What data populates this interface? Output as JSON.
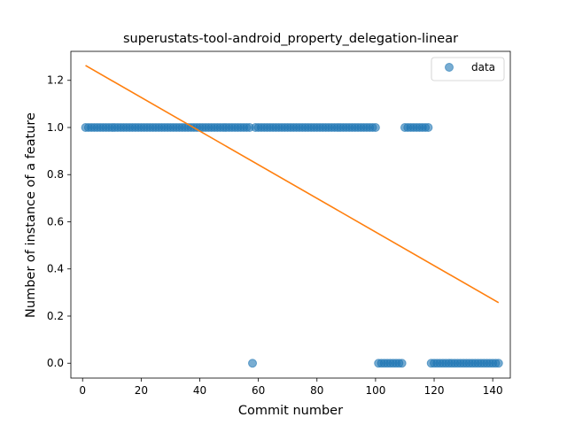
{
  "chart_data": {
    "type": "scatter",
    "title": "superustats-tool-android_property_delegation-linear",
    "xlabel": "Commit number",
    "ylabel": "Number of instance of a feature",
    "xlim": [
      -4,
      146
    ],
    "ylim": [
      -0.063,
      1.323
    ],
    "xticks": [
      0,
      20,
      40,
      60,
      80,
      100,
      120,
      140
    ],
    "yticks": [
      0.0,
      0.2,
      0.4,
      0.6,
      0.8,
      1.0,
      1.2
    ],
    "ytick_labels": [
      "0.0",
      "0.2",
      "0.4",
      "0.6",
      "0.8",
      "1.0",
      "1.2"
    ],
    "legend": {
      "position": "top-right",
      "entries": [
        "data"
      ]
    },
    "grid": false,
    "series": [
      {
        "name": "data",
        "kind": "scatter",
        "color": "#1f77b4",
        "points": [
          [
            1,
            1
          ],
          [
            2,
            1
          ],
          [
            3,
            1
          ],
          [
            4,
            1
          ],
          [
            5,
            1
          ],
          [
            6,
            1
          ],
          [
            7,
            1
          ],
          [
            8,
            1
          ],
          [
            9,
            1
          ],
          [
            10,
            1
          ],
          [
            11,
            1
          ],
          [
            12,
            1
          ],
          [
            13,
            1
          ],
          [
            14,
            1
          ],
          [
            15,
            1
          ],
          [
            16,
            1
          ],
          [
            17,
            1
          ],
          [
            18,
            1
          ],
          [
            19,
            1
          ],
          [
            20,
            1
          ],
          [
            21,
            1
          ],
          [
            22,
            1
          ],
          [
            23,
            1
          ],
          [
            24,
            1
          ],
          [
            25,
            1
          ],
          [
            26,
            1
          ],
          [
            27,
            1
          ],
          [
            28,
            1
          ],
          [
            29,
            1
          ],
          [
            30,
            1
          ],
          [
            31,
            1
          ],
          [
            32,
            1
          ],
          [
            33,
            1
          ],
          [
            34,
            1
          ],
          [
            35,
            1
          ],
          [
            36,
            1
          ],
          [
            37,
            1
          ],
          [
            38,
            1
          ],
          [
            39,
            1
          ],
          [
            40,
            1
          ],
          [
            41,
            1
          ],
          [
            42,
            1
          ],
          [
            43,
            1
          ],
          [
            44,
            1
          ],
          [
            45,
            1
          ],
          [
            46,
            1
          ],
          [
            47,
            1
          ],
          [
            48,
            1
          ],
          [
            49,
            1
          ],
          [
            50,
            1
          ],
          [
            51,
            1
          ],
          [
            52,
            1
          ],
          [
            53,
            1
          ],
          [
            54,
            1
          ],
          [
            55,
            1
          ],
          [
            56,
            1
          ],
          [
            57,
            1
          ],
          [
            58,
            0
          ],
          [
            59,
            1
          ],
          [
            60,
            1
          ],
          [
            61,
            1
          ],
          [
            62,
            1
          ],
          [
            63,
            1
          ],
          [
            64,
            1
          ],
          [
            65,
            1
          ],
          [
            66,
            1
          ],
          [
            67,
            1
          ],
          [
            68,
            1
          ],
          [
            69,
            1
          ],
          [
            70,
            1
          ],
          [
            71,
            1
          ],
          [
            72,
            1
          ],
          [
            73,
            1
          ],
          [
            74,
            1
          ],
          [
            75,
            1
          ],
          [
            76,
            1
          ],
          [
            77,
            1
          ],
          [
            78,
            1
          ],
          [
            79,
            1
          ],
          [
            80,
            1
          ],
          [
            81,
            1
          ],
          [
            82,
            1
          ],
          [
            83,
            1
          ],
          [
            84,
            1
          ],
          [
            85,
            1
          ],
          [
            86,
            1
          ],
          [
            87,
            1
          ],
          [
            88,
            1
          ],
          [
            89,
            1
          ],
          [
            90,
            1
          ],
          [
            91,
            1
          ],
          [
            92,
            1
          ],
          [
            93,
            1
          ],
          [
            94,
            1
          ],
          [
            95,
            1
          ],
          [
            96,
            1
          ],
          [
            97,
            1
          ],
          [
            98,
            1
          ],
          [
            99,
            1
          ],
          [
            100,
            1
          ],
          [
            101,
            0
          ],
          [
            102,
            0
          ],
          [
            103,
            0
          ],
          [
            104,
            0
          ],
          [
            105,
            0
          ],
          [
            106,
            0
          ],
          [
            107,
            0
          ],
          [
            108,
            0
          ],
          [
            109,
            0
          ],
          [
            110,
            1
          ],
          [
            111,
            1
          ],
          [
            112,
            1
          ],
          [
            113,
            1
          ],
          [
            114,
            1
          ],
          [
            115,
            1
          ],
          [
            116,
            1
          ],
          [
            117,
            1
          ],
          [
            118,
            1
          ],
          [
            119,
            0
          ],
          [
            120,
            0
          ],
          [
            121,
            0
          ],
          [
            122,
            0
          ],
          [
            123,
            0
          ],
          [
            124,
            0
          ],
          [
            125,
            0
          ],
          [
            126,
            0
          ],
          [
            127,
            0
          ],
          [
            128,
            0
          ],
          [
            129,
            0
          ],
          [
            130,
            0
          ],
          [
            131,
            0
          ],
          [
            132,
            0
          ],
          [
            133,
            0
          ],
          [
            134,
            0
          ],
          [
            135,
            0
          ],
          [
            136,
            0
          ],
          [
            137,
            0
          ],
          [
            138,
            0
          ],
          [
            139,
            0
          ],
          [
            140,
            0
          ],
          [
            141,
            0
          ],
          [
            142,
            0
          ]
        ]
      },
      {
        "kind": "line",
        "color": "#ff7f0e",
        "points": [
          [
            1,
            1.263
          ],
          [
            142,
            0.257
          ]
        ]
      }
    ]
  }
}
